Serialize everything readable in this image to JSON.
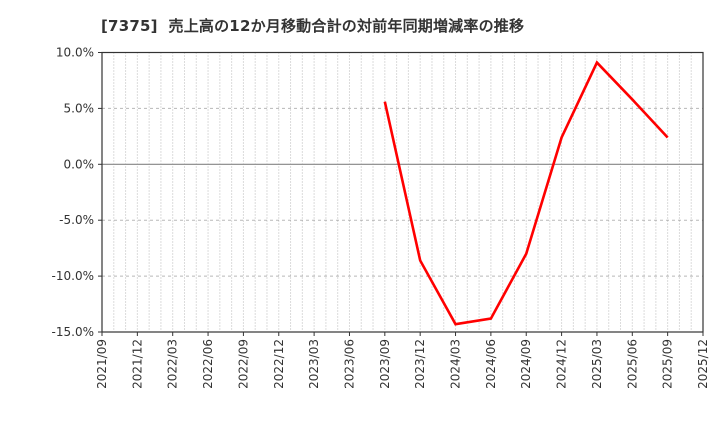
{
  "page": {
    "background": "#ffffff"
  },
  "chart_data": {
    "type": "line",
    "title": "[7375]  売上高の12か月移動合計の対前年同期増減率の推移",
    "xlabel": "",
    "ylabel": "",
    "x_range": [
      "2021/09",
      "2025/12"
    ],
    "x_minor_unit": "month",
    "x_tick_labels": [
      "2021/09",
      "2021/12",
      "2022/03",
      "2022/06",
      "2022/09",
      "2022/12",
      "2023/03",
      "2023/06",
      "2023/09",
      "2023/12",
      "2024/03",
      "2024/06",
      "2024/09",
      "2024/12",
      "2025/03",
      "2025/06",
      "2025/09",
      "2025/12"
    ],
    "ylim": [
      -15,
      10
    ],
    "y_step": 5,
    "y_tick_labels": [
      "10.0%",
      "5.0%",
      "0.0%",
      "-5.0%",
      "-10.0%",
      "-15.0%"
    ],
    "grid": true,
    "legend": false,
    "series": [
      {
        "color": "#ff0000",
        "points": [
          {
            "x": "2023/09",
            "y": 5.6
          },
          {
            "x": "2023/12",
            "y": -8.6
          },
          {
            "x": "2024/03",
            "y": -14.3
          },
          {
            "x": "2024/06",
            "y": -13.8
          },
          {
            "x": "2024/09",
            "y": -8.0
          },
          {
            "x": "2024/12",
            "y": 2.4
          },
          {
            "x": "2025/03",
            "y": 9.1
          },
          {
            "x": "2025/06",
            "y": 5.8
          },
          {
            "x": "2025/09",
            "y": 2.4
          }
        ]
      }
    ],
    "colors": {
      "line": "#ff0000",
      "grid": "#b8b8b8",
      "zero_line": "#858585",
      "spine": "#333333",
      "tick_label": "#333333",
      "title": "#333333"
    }
  }
}
